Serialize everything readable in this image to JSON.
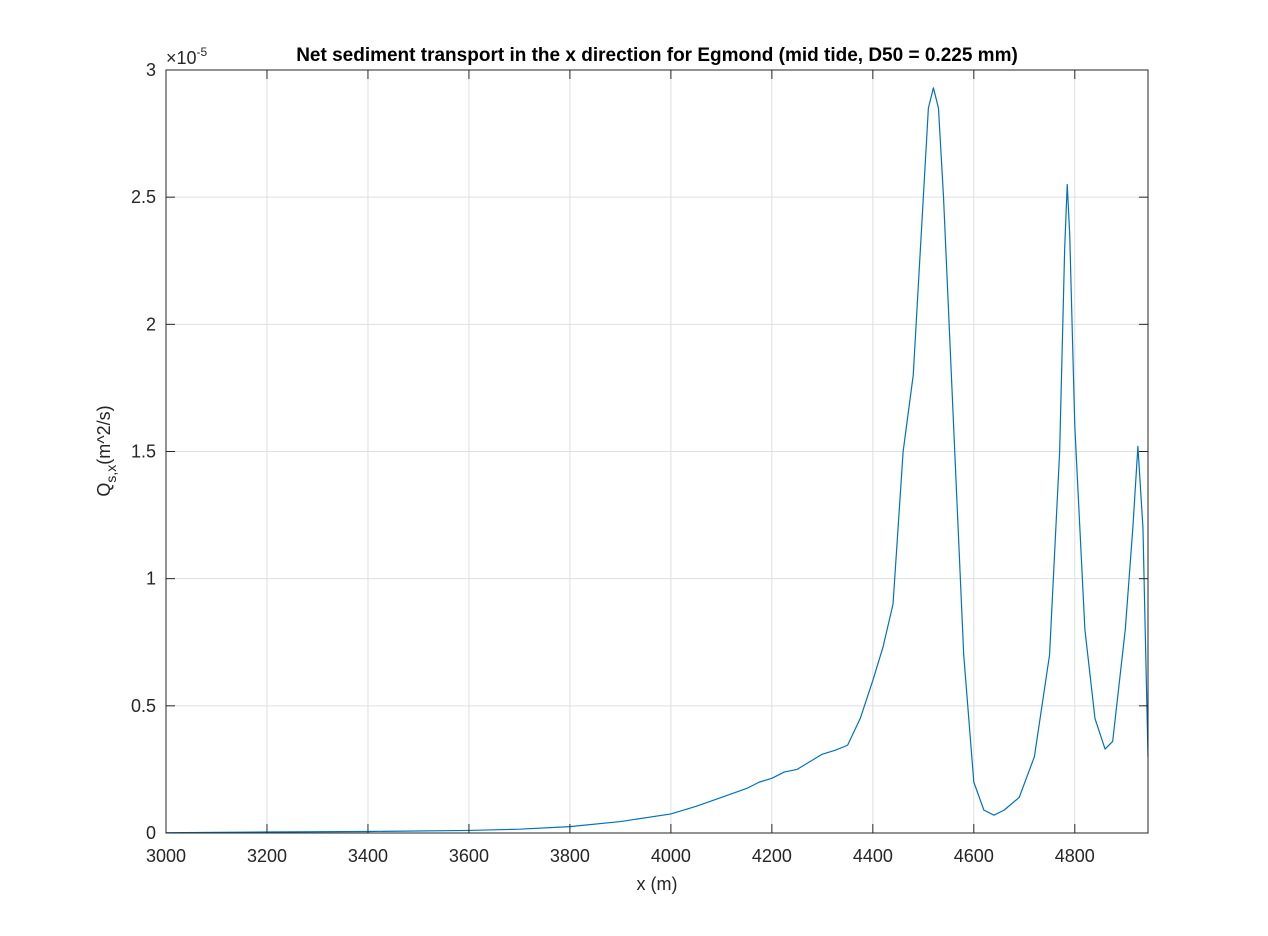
{
  "chart_data": {
    "type": "line",
    "title": "Net sediment transport in the x direction for Egmond (mid tide, D50 = 0.225 mm)",
    "xlabel": "x (m)",
    "ylabel": {
      "main": "Q",
      "sub": "s,x",
      "rest": "(m^2/s)"
    },
    "y_multiplier": {
      "base": "×10",
      "exponent": "-5"
    },
    "xlim": [
      3000,
      4945
    ],
    "ylim": [
      0,
      3
    ],
    "xticks": [
      3000,
      3200,
      3400,
      3600,
      3800,
      4000,
      4200,
      4400,
      4600,
      4800
    ],
    "yticks": [
      0,
      0.5,
      1,
      1.5,
      2,
      2.5,
      3
    ],
    "grid": true,
    "x": [
      3000,
      3200,
      3400,
      3600,
      3700,
      3800,
      3900,
      4000,
      4050,
      4100,
      4150,
      4175,
      4200,
      4225,
      4250,
      4275,
      4300,
      4325,
      4350,
      4375,
      4400,
      4420,
      4440,
      4460,
      4480,
      4500,
      4510,
      4520,
      4530,
      4540,
      4560,
      4580,
      4600,
      4620,
      4640,
      4660,
      4690,
      4720,
      4750,
      4770,
      4780,
      4785,
      4790,
      4800,
      4820,
      4840,
      4860,
      4875,
      4900,
      4915,
      4925,
      4935,
      4945
    ],
    "series": [
      {
        "color": "#0072BD",
        "values": [
          0.001,
          0.004,
          0.006,
          0.01,
          0.015,
          0.025,
          0.045,
          0.075,
          0.105,
          0.14,
          0.175,
          0.2,
          0.215,
          0.24,
          0.25,
          0.28,
          0.31,
          0.325,
          0.345,
          0.45,
          0.6,
          0.73,
          0.9,
          1.5,
          1.8,
          2.5,
          2.85,
          2.93,
          2.85,
          2.5,
          1.6,
          0.7,
          0.2,
          0.09,
          0.07,
          0.09,
          0.14,
          0.3,
          0.7,
          1.5,
          2.3,
          2.55,
          2.35,
          1.6,
          0.8,
          0.45,
          0.33,
          0.36,
          0.8,
          1.2,
          1.52,
          1.2,
          0.3
        ]
      }
    ]
  }
}
